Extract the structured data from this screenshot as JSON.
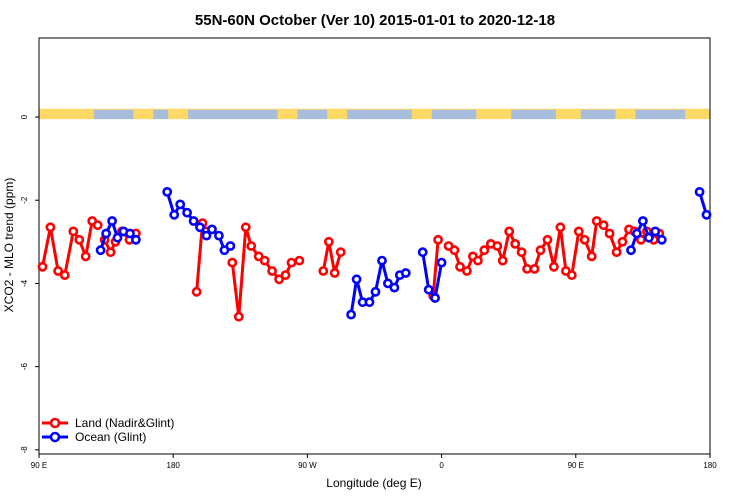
{
  "chart_data": {
    "type": "line",
    "title": "55N-60N October (Ver 10)   2015-01-01 to 2020-12-18",
    "xlabel": "Longitude (deg E)",
    "ylabel": "XCO2 - MLO trend (ppm)",
    "xlim": [
      -90,
      180
    ],
    "ylim": [
      -8.1,
      1.9
    ],
    "x_ticks": [
      {
        "value": -90,
        "label": "90 E"
      },
      {
        "value": -36,
        "label": "180"
      },
      {
        "value": 18,
        "label": "90 W"
      },
      {
        "value": 72,
        "label": "0"
      },
      {
        "value": 126,
        "label": "90 E"
      },
      {
        "value": 180,
        "label": "180"
      }
    ],
    "y_ticks": [
      {
        "value": 0,
        "label": "0"
      },
      {
        "value": -2,
        "label": "-2"
      },
      {
        "value": -4,
        "label": "-4"
      },
      {
        "value": -6,
        "label": "-6"
      },
      {
        "value": -8,
        "label": "-8"
      }
    ],
    "legend": {
      "position": "bottom-left",
      "entries": [
        {
          "label": "Land (Nadir&Glint)",
          "color": "#ff0000"
        },
        {
          "label": "Ocean (Glint)",
          "color": "#0000ff"
        }
      ]
    },
    "land_mask_strip": {
      "y_range": [
        -0.05,
        0.2
      ],
      "land_color": "#ffd966",
      "ocean_color": "#a6bddb"
    },
    "series": [
      {
        "name": "Land (Nadir&Glint)",
        "color": "#ff0000",
        "segments": [
          {
            "x": [
              -88.6,
              -85.4,
              -82.3,
              -79.6,
              -76.2,
              -73.8,
              -71.2,
              -68.6,
              -66.4
            ],
            "y": [
              -3.6,
              -2.65,
              -3.7,
              -3.8,
              -2.75,
              -2.95,
              -3.35,
              -2.5,
              -2.6
            ]
          },
          {
            "x": [
              -63.6,
              -61.2,
              -59.2,
              -56.6,
              -53.6,
              -51.0
            ],
            "y": [
              -2.95,
              -3.25,
              -3.0,
              -2.75,
              -2.95,
              -2.8
            ]
          },
          {
            "x": [
              -26.6,
              -24.2,
              -22.8
            ],
            "y": [
              -4.2,
              -2.55,
              -2.75
            ]
          },
          {
            "x": [
              -12.2,
              -9.6,
              -6.8,
              -4.6,
              -1.6,
              0.8,
              3.8,
              6.6,
              9.2,
              11.6,
              14.8
            ],
            "y": [
              -3.5,
              -4.8,
              -2.65,
              -3.1,
              -3.35,
              -3.45,
              -3.7,
              -3.9,
              -3.8,
              -3.5,
              -3.45
            ]
          },
          {
            "x": [
              24.4,
              26.6,
              29.0,
              31.4
            ],
            "y": [
              -3.7,
              -3.0,
              -3.75,
              -3.25
            ]
          },
          {
            "x": [
              68.6,
              70.6
            ],
            "y": [
              -4.3,
              -2.95
            ]
          },
          {
            "x": [
              74.8,
              77.2,
              79.4,
              82.2,
              84.6,
              86.6,
              89.2,
              91.8,
              94.4,
              96.6,
              99.2,
              101.6,
              104.2,
              106.4,
              109.4,
              111.8,
              114.6,
              117.2,
              119.8,
              122.0,
              124.4,
              127.2,
              129.6,
              132.4,
              134.4,
              137.2,
              139.6,
              142.4,
              144.8,
              147.4,
              149.6,
              152.2,
              154.6,
              157.4,
              159.6
            ],
            "y": [
              -3.1,
              -3.2,
              -3.6,
              -3.7,
              -3.35,
              -3.45,
              -3.2,
              -3.05,
              -3.1,
              -3.45,
              -2.75,
              -3.05,
              -3.25,
              -3.65,
              -3.65,
              -3.2,
              -2.95,
              -3.6,
              -2.65,
              -3.7,
              -3.8,
              -2.75,
              -2.95,
              -3.35,
              -2.5,
              -2.6,
              -2.8,
              -3.25,
              -3.0,
              -2.7,
              -2.75,
              -2.95,
              -2.75,
              -2.95,
              -2.8
            ]
          }
        ]
      },
      {
        "name": "Ocean (Glint)",
        "color": "#0000ff",
        "segments": [
          {
            "x": [
              -65.2,
              -63.0,
              -60.6,
              -58.4,
              -56.0,
              -53.4,
              -51.0
            ],
            "y": [
              -3.2,
              -2.8,
              -2.5,
              -2.9,
              -2.75,
              -2.8,
              -2.95
            ]
          },
          {
            "x": [
              -38.4,
              -35.6,
              -33.2,
              -30.4,
              -27.8,
              -25.2,
              -22.6,
              -20.4,
              -17.6,
              -15.4,
              -13.0
            ],
            "y": [
              -1.8,
              -2.35,
              -2.1,
              -2.3,
              -2.5,
              -2.65,
              -2.85,
              -2.7,
              -2.85,
              -3.2,
              -3.1
            ]
          },
          {
            "x": [
              35.6,
              37.8,
              40.2,
              43.0,
              45.4,
              48.0,
              50.4,
              53.0,
              55.2,
              57.6
            ],
            "y": [
              -4.75,
              -3.9,
              -4.45,
              -4.45,
              -4.2,
              -3.45,
              -4.0,
              -4.1,
              -3.8,
              -3.75
            ]
          },
          {
            "x": [
              64.4,
              66.8,
              69.4,
              72.0
            ],
            "y": [
              -3.25,
              -4.15,
              -4.35,
              -3.5
            ]
          },
          {
            "x": [
              148.2,
              150.6,
              153.0,
              155.4,
              158.0,
              160.6
            ],
            "y": [
              -3.2,
              -2.8,
              -2.5,
              -2.9,
              -2.75,
              -2.95
            ]
          },
          {
            "x": [
              175.8,
              178.6
            ],
            "y": [
              -1.8,
              -2.35
            ]
          }
        ]
      }
    ]
  }
}
